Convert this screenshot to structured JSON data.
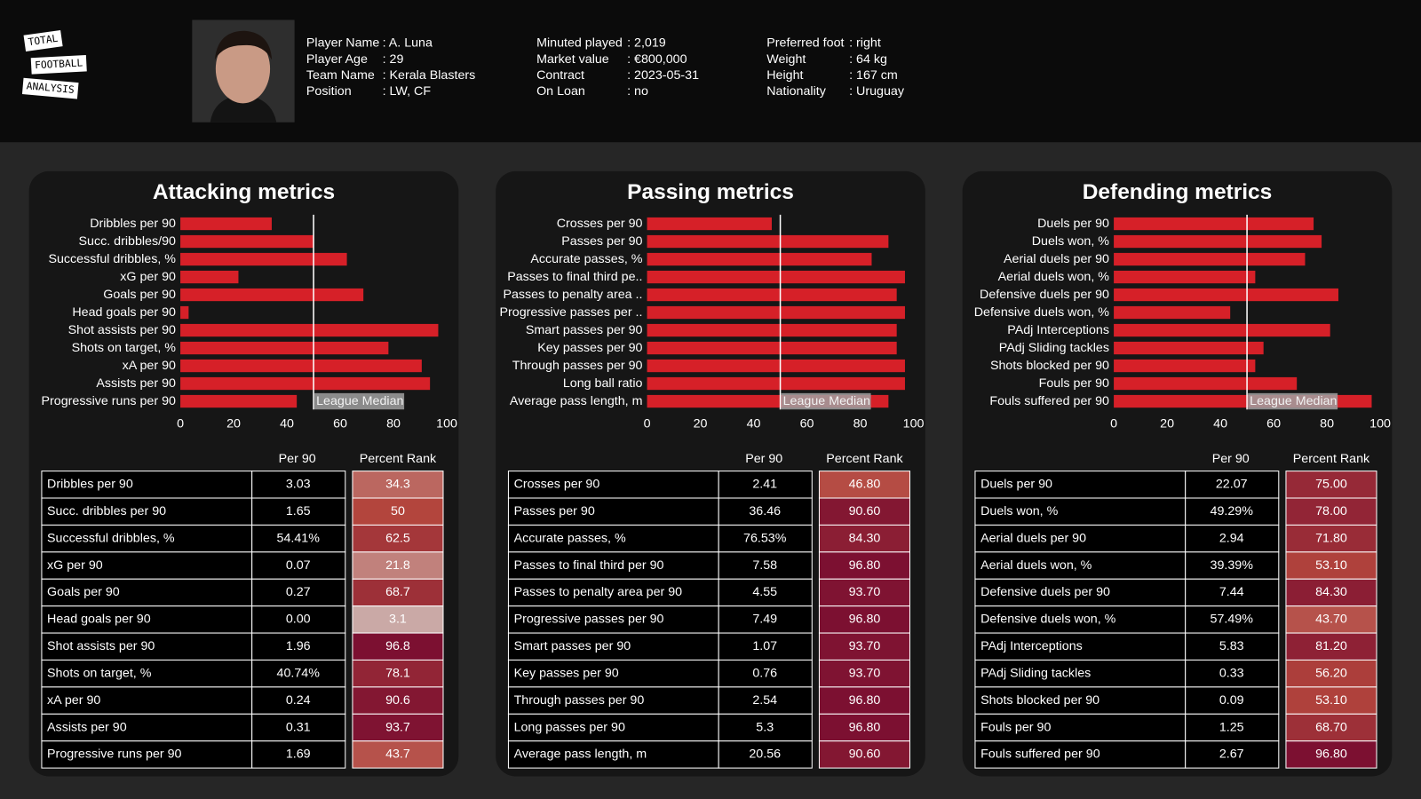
{
  "header": {
    "logo": [
      "TOTAL",
      "FOOTBALL",
      "ANALYSIS"
    ],
    "columns": [
      [
        {
          "label": "Player Name",
          "value": ": A. Luna"
        },
        {
          "label": "Player Age",
          "value": ": 29"
        },
        {
          "label": "Team Name",
          "value": ": Kerala Blasters"
        },
        {
          "label": "Position",
          "value": ": LW, CF"
        }
      ],
      [
        {
          "label": "Minuted played",
          "value": ": 2,019"
        },
        {
          "label": "Market value",
          "value": ": €800,000"
        },
        {
          "label": "Contract",
          "value": ": 2023-05-31"
        },
        {
          "label": "On Loan",
          "value": ": no"
        }
      ],
      [
        {
          "label": "Preferred foot",
          "value": ": right"
        },
        {
          "label": "Weight",
          "value": ": 64 kg"
        },
        {
          "label": "Height",
          "value": ": 167 cm"
        },
        {
          "label": "Nationality",
          "value": ": Uruguay"
        }
      ]
    ]
  },
  "chart_data": [
    {
      "type": "bar",
      "orientation": "horizontal",
      "title": "Attacking metrics",
      "categories": [
        "Dribbles per 90",
        "Succ. dribbles/90",
        "Successful dribbles, %",
        "xG per 90",
        "Goals per 90",
        "Head goals per 90",
        "Shot assists per 90",
        "Shots on target, %",
        "xA per 90",
        "Assists per 90",
        "Progressive runs per 90"
      ],
      "values": [
        34.3,
        50,
        62.5,
        21.8,
        68.7,
        3.1,
        96.8,
        78.1,
        90.6,
        93.7,
        43.7
      ],
      "color": "#d62028",
      "xlim": [
        0,
        100
      ],
      "xticks": [
        0,
        20,
        40,
        60,
        80,
        100
      ],
      "median": {
        "value": 50,
        "label": "League Median"
      },
      "color_scale": [
        "#cbb0ad",
        "#b3453d",
        "#780c30"
      ],
      "table": {
        "columns": [
          "Per 90",
          "Percent Rank"
        ],
        "rows": [
          "Dribbles per 90",
          "Succ. dribbles per 90",
          "Successful dribbles, %",
          "xG per 90",
          "Goals per 90",
          "Head goals per 90",
          "Shot assists per 90",
          "Shots on target, %",
          "xA per 90",
          "Assists per 90",
          "Progressive runs per 90"
        ],
        "per90": [
          "3.03",
          "1.65",
          "54.41%",
          "0.07",
          "0.27",
          "0.00",
          "1.96",
          "40.74%",
          "0.24",
          "0.31",
          "1.69"
        ]
      }
    },
    {
      "type": "bar",
      "orientation": "horizontal",
      "title": "Passing metrics",
      "categories": [
        "Crosses per 90",
        "Passes per 90",
        "Accurate passes, %",
        "Passes to final third pe..",
        "Passes to penalty area ..",
        "Progressive passes per ..",
        "Smart passes per 90",
        "Key passes per 90",
        "Through passes per 90",
        "Long ball ratio",
        "Average pass length, m"
      ],
      "values": [
        46.8,
        90.6,
        84.3,
        96.8,
        93.7,
        96.8,
        93.7,
        93.7,
        96.8,
        96.8,
        90.6
      ],
      "value_labels": [
        "46.80",
        "90.60",
        "84.30",
        "96.80",
        "93.70",
        "96.80",
        "93.70",
        "93.70",
        "96.80",
        "96.80",
        "90.60"
      ],
      "color": "#d62028",
      "xlim": [
        0,
        100
      ],
      "xticks": [
        0,
        20,
        40,
        60,
        80,
        100
      ],
      "median": {
        "value": 50,
        "label": "League Median"
      },
      "color_scale": [
        "#cbb0ad",
        "#b3453d",
        "#780c30"
      ],
      "table": {
        "columns": [
          "Per 90",
          "Percent Rank"
        ],
        "rows": [
          "Crosses per 90",
          "Passes per 90",
          "Accurate passes, %",
          "Passes to final third per 90",
          "Passes to penalty area per 90",
          "Progressive passes per 90",
          "Smart passes per 90",
          "Key passes per 90",
          "Through passes per 90",
          "Long passes per 90",
          "Average pass length, m"
        ],
        "per90": [
          "2.41",
          "36.46",
          "76.53%",
          "7.58",
          "4.55",
          "7.49",
          "1.07",
          "0.76",
          "2.54",
          "5.3",
          "20.56"
        ]
      }
    },
    {
      "type": "bar",
      "orientation": "horizontal",
      "title": "Defending metrics",
      "categories": [
        "Duels per 90",
        "Duels won, %",
        "Aerial duels per 90",
        "Aerial duels won, %",
        "Defensive duels per 90",
        "Defensive duels won, %",
        "PAdj Interceptions",
        "PAdj Sliding tackles",
        "Shots blocked per 90",
        "Fouls per 90",
        "Fouls suffered per 90"
      ],
      "values": [
        75,
        78,
        71.8,
        53.1,
        84.3,
        43.7,
        81.2,
        56.2,
        53.1,
        68.7,
        96.8
      ],
      "value_labels": [
        "75.00",
        "78.00",
        "71.80",
        "53.10",
        "84.30",
        "43.70",
        "81.20",
        "56.20",
        "53.10",
        "68.70",
        "96.80"
      ],
      "color": "#d62028",
      "xlim": [
        0,
        100
      ],
      "xticks": [
        0,
        20,
        40,
        60,
        80,
        100
      ],
      "median": {
        "value": 50,
        "label": "League Median"
      },
      "color_scale": [
        "#cbb0ad",
        "#b3453d",
        "#780c30"
      ],
      "table": {
        "columns": [
          "Per 90",
          "Percent Rank"
        ],
        "rows": [
          "Duels per 90",
          "Duels won, %",
          "Aerial duels per 90",
          "Aerial duels won, %",
          "Defensive duels per 90",
          "Defensive duels won, %",
          "PAdj Interceptions",
          "PAdj Sliding tackles",
          "Shots blocked per 90",
          "Fouls per 90",
          "Fouls suffered per 90"
        ],
        "per90": [
          "22.07",
          "49.29%",
          "2.94",
          "39.39%",
          "7.44",
          "57.49%",
          "5.83",
          "0.33",
          "0.09",
          "1.25",
          "2.67"
        ]
      }
    }
  ]
}
